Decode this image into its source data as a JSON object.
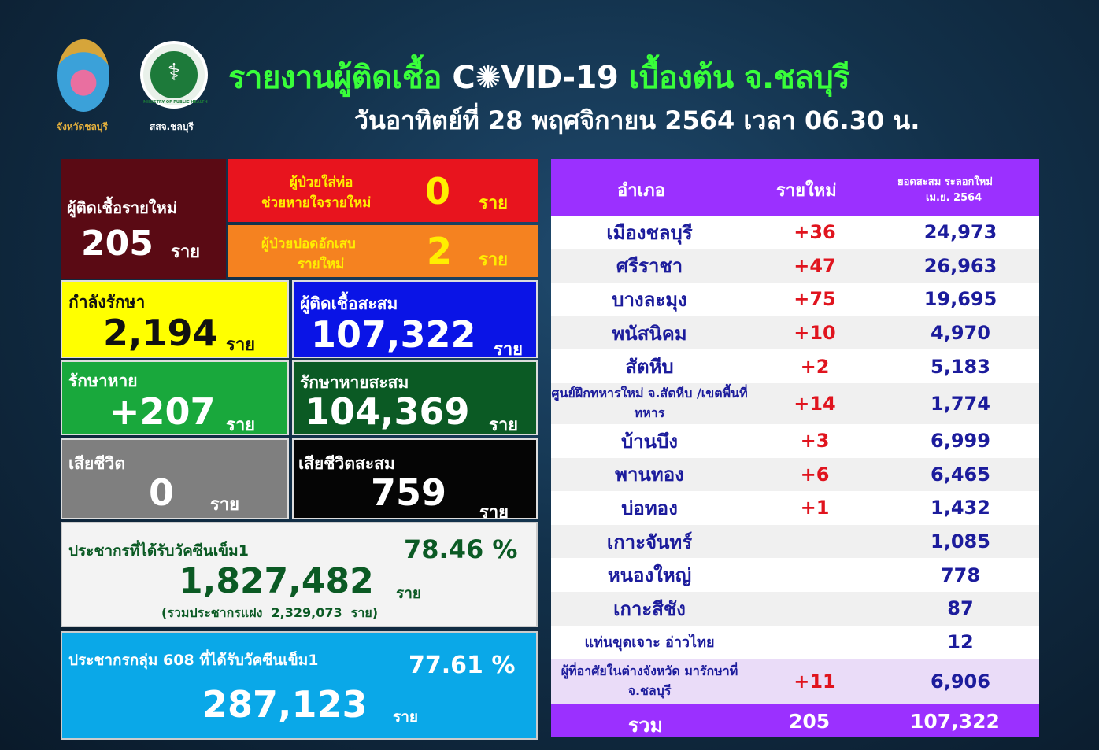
{
  "header": {
    "logo1_caption": "จังหวัดชลบุรี",
    "logo2_caption": "สสจ.ชลบุรี",
    "title_pre": "รายงานผู้ติดเชื้อ",
    "title_covid": "C✺VID-19",
    "title_post": "เบื้องต้น จ.ชลบุรี",
    "date": "วันอาทิตย์ที่ 28 พฤศจิกายน 2564 เวลา 06.30 น.",
    "logo2_text": "MINISTRY OF PUBLIC HEALTH"
  },
  "unit": "ราย",
  "stats": {
    "new_cases": {
      "label": "ผู้ติดเชื้อรายใหม่",
      "value": "205"
    },
    "ventilator": {
      "label1": "ผู้ป่วยใส่ท่อ",
      "label2": "ช่วยหายใจรายใหม่",
      "value": "0"
    },
    "pneumonia": {
      "label1": "ผู้ป่วยปอดอักเสบ",
      "label2": "รายใหม่",
      "value": "2"
    },
    "treating": {
      "label": "กำลังรักษา",
      "value": "2,194"
    },
    "cumulative": {
      "label": "ผู้ติดเชื้อสะสม",
      "value": "107,322"
    },
    "recovered": {
      "label": "รักษาหาย",
      "value": "+207"
    },
    "recovered_cum": {
      "label": "รักษาหายสะสม",
      "value": "104,369"
    },
    "deaths": {
      "label": "เสียชีวิต",
      "value": "0"
    },
    "deaths_cum": {
      "label": "เสียชีวิตสะสม",
      "value": "759"
    },
    "vaccine": {
      "label": "ประชากรที่ได้รับวัคซีนเข็ม1",
      "percent": "78.46 %",
      "value": "1,827,482",
      "note": "(รวมประชากรแฝง  2,329,073  ราย)"
    },
    "vaccine608": {
      "label": "ประชากรกลุ่ม 608 ที่ได้รับวัคซีนเข็ม1",
      "percent": "77.61 %",
      "value": "287,123"
    }
  },
  "table": {
    "headers": [
      "อำเภอ",
      "รายใหม่",
      "ยอดสะสม ระลอกใหม่",
      "เม.ย. 2564"
    ],
    "rows": [
      {
        "district": "เมืองชลบุรี",
        "new": "+36",
        "total": "24,973"
      },
      {
        "district": "ศรีราชา",
        "new": "+47",
        "total": "26,963"
      },
      {
        "district": "บางละมุง",
        "new": "+75",
        "total": "19,695"
      },
      {
        "district": "พนัสนิคม",
        "new": "+10",
        "total": "4,970"
      },
      {
        "district": "สัตหีบ",
        "new": "+2",
        "total": "5,183"
      },
      {
        "district": "ศูนย์ฝึกทหารใหม่ จ.สัตหีบ /เขตพื้นที่ทหาร",
        "new": "+14",
        "total": "1,774"
      },
      {
        "district": "บ้านบึง",
        "new": "+3",
        "total": "6,999"
      },
      {
        "district": "พานทอง",
        "new": "+6",
        "total": "6,465"
      },
      {
        "district": "บ่อทอง",
        "new": "+1",
        "total": "1,432"
      },
      {
        "district": "เกาะจันทร์",
        "new": "",
        "total": "1,085"
      },
      {
        "district": "หนองใหญ่",
        "new": "",
        "total": "778"
      },
      {
        "district": "เกาะสีชัง",
        "new": "",
        "total": "87"
      },
      {
        "district": "แท่นขุดเจาะ อ่าวไทย",
        "new": "",
        "total": "12"
      },
      {
        "district": "ผู้ที่อาศัยในต่างจังหวัด มารักษาที่ จ.ชลบุรี",
        "new": "+11",
        "total": "6,906"
      }
    ],
    "total": {
      "label": "รวม",
      "new": "205",
      "total": "107,322"
    }
  },
  "colors": {
    "header_purple": "#9b30ff",
    "red": "#e8141e",
    "orange": "#f58220",
    "yellow": "#ffff00",
    "blue": "#0a14e6",
    "green": "#19a83c",
    "dark_green": "#0b5a24",
    "maroon": "#5a0a14"
  }
}
